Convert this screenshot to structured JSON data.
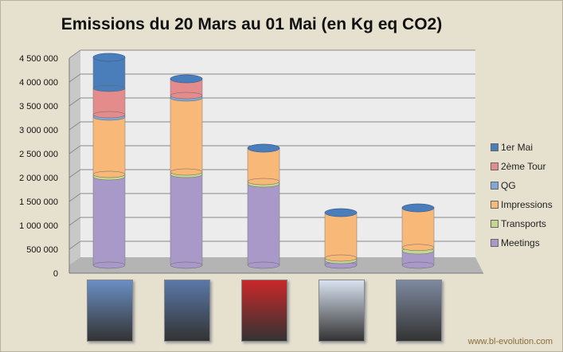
{
  "chart_data": {
    "type": "bar",
    "stacked": true,
    "style": "3d-cylinder",
    "title": "Emissions du 20 Mars au 01 Mai (en Kg eq CO2)",
    "xlabel": "",
    "ylabel": "",
    "ylim": [
      0,
      4500000
    ],
    "yticks": [
      "0",
      "500 000",
      "1 000 000",
      "1 500 000",
      "2 000 000",
      "2 500 000",
      "3 000 000",
      "3 500 000",
      "4 000 000",
      "4 500 000"
    ],
    "grid": true,
    "legend_position": "right",
    "categories": [
      "poster-1",
      "poster-2",
      "poster-3",
      "poster-4",
      "poster-5"
    ],
    "series": [
      {
        "name": "Meetings",
        "color": "#a999c9",
        "values": [
          1850000,
          1900000,
          1700000,
          100000,
          300000
        ]
      },
      {
        "name": "Transports",
        "color": "#c3d88e",
        "values": [
          50000,
          50000,
          50000,
          50000,
          70000
        ]
      },
      {
        "name": "Impressions",
        "color": "#f8b878",
        "values": [
          1200000,
          1550000,
          700000,
          950000,
          830000
        ]
      },
      {
        "name": "QG",
        "color": "#7fa8d9",
        "values": [
          50000,
          50000,
          0,
          0,
          0
        ]
      },
      {
        "name": "2ème Tour",
        "color": "#e48c8c",
        "values": [
          550000,
          350000,
          0,
          0,
          0
        ]
      },
      {
        "name": "1er Mai",
        "color": "#4a7ebb",
        "values": [
          650000,
          0,
          0,
          0,
          0
        ]
      }
    ]
  },
  "credit": "www.bl-evolution.com",
  "poster_colors": [
    "#6a8fc4",
    "#5a78a8",
    "#c8282a",
    "#d8e2f0",
    "#7e8aa0"
  ]
}
